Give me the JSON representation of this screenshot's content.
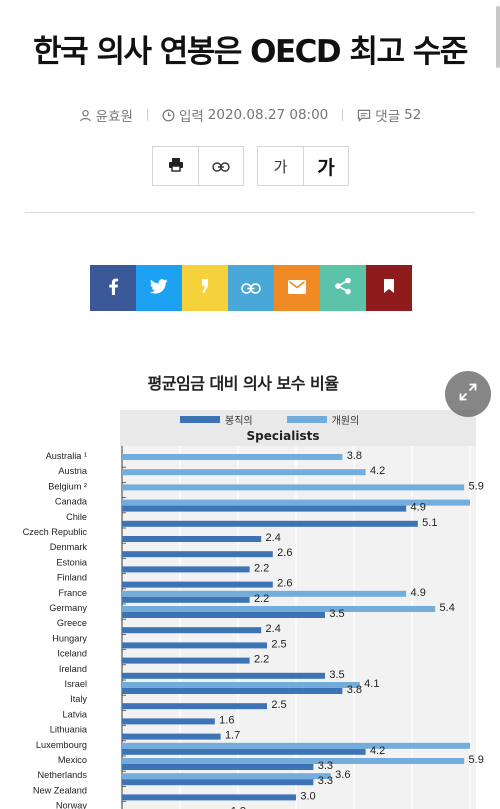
{
  "article": {
    "headline": "한국 의사 연봉은 OECD 최고 수준",
    "author": "윤효원",
    "date_label": "입력",
    "date": "2020.08.27 08:00",
    "comments_label": "댓글",
    "comments_count": "52"
  },
  "toolbar": {
    "font_small": "가",
    "font_large": "가"
  },
  "share": {
    "colors": [
      "#3b5998",
      "#1da1f2",
      "#f5d23b",
      "#4aa8d8",
      "#f08a24",
      "#5bc4a8",
      "#8e1c1c"
    ],
    "icons": [
      "facebook-icon",
      "twitter-icon",
      "kakao-icon",
      "link-icon",
      "mail-icon",
      "share-icon",
      "bookmark-icon"
    ]
  },
  "chart_data": {
    "type": "bar",
    "title": "평균임금  대비 의사 보수 비율",
    "subtitle": "Specialists",
    "legend": [
      {
        "name": "봉직의",
        "color": "#3d74b5"
      },
      {
        "name": "개원의",
        "color": "#74addc"
      }
    ],
    "xlim": [
      0,
      6
    ],
    "grid": true,
    "categories": [
      "Australia ¹",
      "Austria",
      "Belgium ²",
      "Canada",
      "Chile",
      "Czech Republic",
      "Denmark",
      "Estonia",
      "Finland",
      "France",
      "Germany",
      "Greece",
      "Hungary",
      "Iceland",
      "Ireland",
      "Israel",
      "Italy",
      "Latvia",
      "Lithuania",
      "Luxembourg",
      "Mexico",
      "Netherlands",
      "New Zealand",
      "Norway"
    ],
    "series": [
      {
        "name": "봉직의",
        "values": [
          null,
          null,
          null,
          4.9,
          5.1,
          2.4,
          2.6,
          2.2,
          2.6,
          2.2,
          3.5,
          2.4,
          2.5,
          2.2,
          3.5,
          3.8,
          2.5,
          1.6,
          1.7,
          4.2,
          3.3,
          3.3,
          3.0,
          1.8
        ]
      },
      {
        "name": "개원의",
        "values": [
          3.8,
          4.2,
          5.9,
          6.0,
          null,
          null,
          null,
          null,
          null,
          4.9,
          5.4,
          null,
          null,
          null,
          null,
          4.1,
          null,
          null,
          null,
          6.0,
          5.9,
          3.6,
          null,
          null
        ]
      }
    ],
    "data_labels": [
      [
        "",
        "",
        "",
        "4.9",
        "5.1",
        "2.4",
        "2.6",
        "2.2",
        "2.6",
        "2.2",
        "3.5",
        "2.4",
        "2.5",
        "2.2",
        "3.5",
        "3.8",
        "2.5",
        "1.6",
        "1.7",
        "4.2",
        "3.3",
        "3.3",
        "3.0",
        "1.8"
      ],
      [
        "3.8",
        "4.2",
        "5.9",
        "",
        "",
        "",
        "",
        "",
        "",
        "4.9",
        "5.4",
        "",
        "",
        "",
        "",
        "4.1",
        "",
        "",
        "",
        "",
        "5.9",
        "3.6",
        "",
        ""
      ]
    ]
  }
}
